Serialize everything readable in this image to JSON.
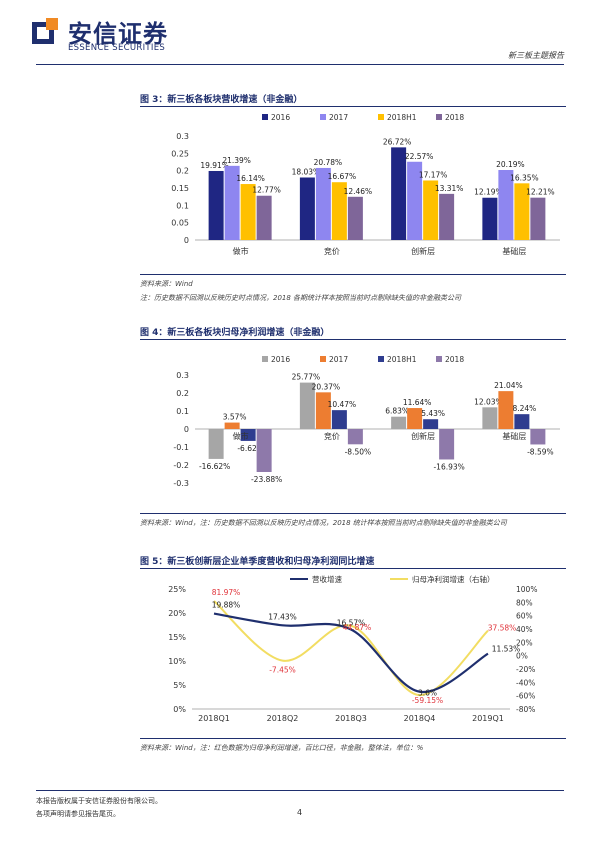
{
  "header": {
    "brand_cn": "安信证券",
    "brand_en": "ESSENCE SECURITIES",
    "report_tag": "新三板主题报告"
  },
  "figures": [
    {
      "title": "图 3：新三板各板块营收增速（非金融）",
      "source": "资料来源：Wind",
      "note": "注：历史数据不回溯以反映历史时点情况，2018 各期统计样本按照当前时点剔除缺失值的非金融类公司"
    },
    {
      "title": "图 4：新三板各板块归母净利润增速（非金融）",
      "source": "资料来源：Wind，注：历史数据不回溯以反映历史时点情况，2018 统计样本按照当前时点剔除缺失值的非金融类公司"
    },
    {
      "title": "图 5：新三板创新层企业单季度营收和归母净利润同比增速",
      "source": "资料来源：Wind，注：红色数据为归母净利润增速，百比口径，非金融，整体法，单位：%"
    }
  ],
  "footer": {
    "line1": "本报告版权属于安信证券股份有限公司。",
    "line2": "各项声明请参见报告尾页。",
    "page": "4"
  },
  "colors": {
    "navy": "#1f2f6e",
    "c2016": "#1f2683",
    "c2017": "#8e86f0",
    "c2018h1": "#ffc000",
    "c2018": "#7f6699",
    "g2016": "#a6a6a6",
    "g2017": "#ed7d31",
    "g2018h1": "#2f3d8f",
    "g2018": "#8e79aa",
    "line_rev": "#1f2f6e",
    "line_np": "#f2dd62",
    "label_red": "#e0333a"
  },
  "chart_data": [
    {
      "type": "bar",
      "title": "新三板各板块营收增速（非金融）",
      "categories": [
        "做市",
        "竞价",
        "创新层",
        "基础层"
      ],
      "series": [
        {
          "name": "2016",
          "values": [
            0.1991,
            0.1803,
            0.2672,
            0.1219
          ],
          "labels": [
            "19.91%",
            "18.03%",
            "26.72%",
            "12.19%"
          ]
        },
        {
          "name": "2017",
          "values": [
            0.2139,
            0.2078,
            0.2257,
            0.2019
          ],
          "labels": [
            "21.39%",
            "20.78%",
            "22.57%",
            "20.19%"
          ]
        },
        {
          "name": "2018H1",
          "values": [
            0.1614,
            0.1667,
            0.1717,
            0.1635
          ],
          "labels": [
            "16.14%",
            "16.67%",
            "17.17%",
            "16.35%"
          ]
        },
        {
          "name": "2018",
          "values": [
            0.1277,
            0.1246,
            0.1331,
            0.1221
          ],
          "labels": [
            "12.77%",
            "12.46%",
            "13.31%",
            "12.21%"
          ]
        }
      ],
      "yticks": [
        "0.3",
        "0.25",
        "0.2",
        "0.15",
        "0.1",
        "0.05",
        "0"
      ],
      "ylim": [
        0,
        0.3
      ],
      "legend": "top"
    },
    {
      "type": "bar",
      "title": "新三板各板块归母净利润增速（非金融）",
      "categories": [
        "做市",
        "竞价",
        "创新层",
        "基础层"
      ],
      "series": [
        {
          "name": "2016",
          "values": [
            -0.1662,
            0.2577,
            0.0683,
            0.1203
          ],
          "labels": [
            "-16.62%",
            "25.77%",
            "6.83%",
            "12.03%"
          ]
        },
        {
          "name": "2017",
          "values": [
            0.0357,
            0.2037,
            0.1164,
            0.2104
          ],
          "labels": [
            "3.57%",
            "20.37%",
            "11.64%",
            "21.04%"
          ]
        },
        {
          "name": "2018H1",
          "values": [
            -0.0662,
            0.1047,
            0.0543,
            0.0824
          ],
          "labels": [
            "-6.62%",
            "10.47%",
            "5.43%",
            "8.24%"
          ]
        },
        {
          "name": "2018",
          "values": [
            -0.2388,
            -0.085,
            -0.1693,
            -0.0859
          ],
          "labels": [
            "-23.88%",
            "-8.50%",
            "-16.93%",
            "-8.59%"
          ]
        }
      ],
      "yticks": [
        "0.3",
        "0.2",
        "0.1",
        "0",
        "-0.1",
        "-0.2",
        "-0.3"
      ],
      "ylim": [
        -0.3,
        0.3
      ],
      "legend": "top"
    },
    {
      "type": "line",
      "title": "新三板创新层企业单季度营收和归母净利润同比增速",
      "x": [
        "2018Q1",
        "2018Q2",
        "2018Q3",
        "2018Q4",
        "2019Q1"
      ],
      "series": [
        {
          "name": "营收增速",
          "axis": "left",
          "values": [
            19.88,
            17.43,
            16.57,
            3.6,
            11.53
          ],
          "labels": [
            "19.88%",
            "17.43%",
            "16.57%",
            "3.6%",
            "11.53%"
          ]
        },
        {
          "name": "归母净利润增速（右轴）",
          "axis": "right",
          "values": [
            81.97,
            -7.45,
            44.87,
            -59.15,
            37.58
          ],
          "labels": [
            "81.97%",
            "-7.45%",
            "44.87%",
            "-59.15%",
            "37.58%"
          ]
        }
      ],
      "yticks_left": [
        "25%",
        "20%",
        "15%",
        "10%",
        "5%",
        "0%"
      ],
      "yticks_right": [
        "100%",
        "80%",
        "60%",
        "40%",
        "20%",
        "0%",
        "-20%",
        "-40%",
        "-60%",
        "-80%"
      ],
      "ylim_left": [
        0,
        25
      ],
      "ylim_right": [
        -80,
        100
      ],
      "legend": "top"
    }
  ]
}
